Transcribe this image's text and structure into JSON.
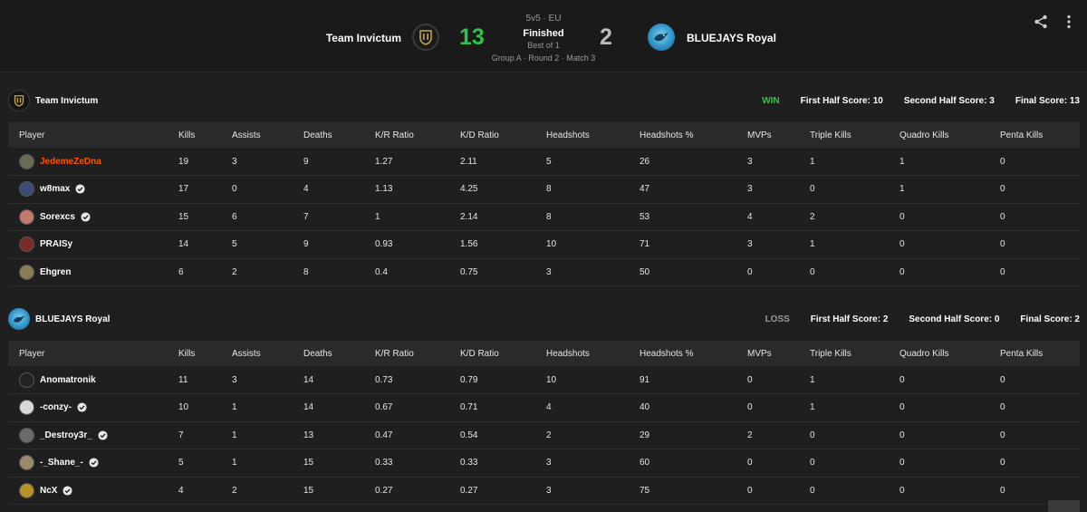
{
  "match": {
    "team_a_name": "Team Invictum",
    "team_b_name": "BLUEJAYS Royal",
    "score_a": "13",
    "score_b": "2",
    "mode": "5v5 · EU",
    "status": "Finished",
    "best_of": "Best of 1",
    "stage": "Group A · Round 2 · Match 3"
  },
  "columns": [
    "Player",
    "Kills",
    "Assists",
    "Deaths",
    "K/R Ratio",
    "K/D Ratio",
    "Headshots",
    "Headshots %",
    "MVPs",
    "Triple Kills",
    "Quadro Kills",
    "Penta Kills"
  ],
  "teams": [
    {
      "name": "Team Invictum",
      "result": "WIN",
      "first_half": "First Half Score: 10",
      "second_half": "Second Half Score: 3",
      "final": "Final Score: 13",
      "players": [
        {
          "name": "JedemeZeDna",
          "verified": false,
          "highlight": true,
          "avatar_color": "#6b6b55",
          "stats": [
            "19",
            "3",
            "9",
            "1.27",
            "2.11",
            "5",
            "26",
            "3",
            "1",
            "1",
            "0"
          ]
        },
        {
          "name": "w8max",
          "verified": true,
          "highlight": false,
          "avatar_color": "#3c4a78",
          "stats": [
            "17",
            "0",
            "4",
            "1.13",
            "4.25",
            "8",
            "47",
            "3",
            "0",
            "1",
            "0"
          ]
        },
        {
          "name": "Sorexcs",
          "verified": true,
          "highlight": false,
          "avatar_color": "#c27a6a",
          "stats": [
            "15",
            "6",
            "7",
            "1",
            "2.14",
            "8",
            "53",
            "4",
            "2",
            "0",
            "0"
          ]
        },
        {
          "name": "PRAISy",
          "verified": false,
          "highlight": false,
          "avatar_color": "#7a2a2a",
          "stats": [
            "14",
            "5",
            "9",
            "0.93",
            "1.56",
            "10",
            "71",
            "3",
            "1",
            "0",
            "0"
          ]
        },
        {
          "name": "Ehgren",
          "verified": false,
          "highlight": false,
          "avatar_color": "#8a7a55",
          "stats": [
            "6",
            "2",
            "8",
            "0.4",
            "0.75",
            "3",
            "50",
            "0",
            "0",
            "0",
            "0"
          ]
        }
      ]
    },
    {
      "name": "BLUEJAYS Royal",
      "result": "LOSS",
      "first_half": "First Half Score: 2",
      "second_half": "Second Half Score: 0",
      "final": "Final Score: 2",
      "players": [
        {
          "name": "Anomatronik",
          "verified": false,
          "highlight": false,
          "avatar_color": "#222222",
          "stats": [
            "11",
            "3",
            "14",
            "0.73",
            "0.79",
            "10",
            "91",
            "0",
            "1",
            "0",
            "0"
          ]
        },
        {
          "name": "-conzy-",
          "verified": true,
          "highlight": false,
          "avatar_color": "#d8d8d8",
          "stats": [
            "10",
            "1",
            "14",
            "0.67",
            "0.71",
            "4",
            "40",
            "0",
            "1",
            "0",
            "0"
          ]
        },
        {
          "name": "_Destroy3r_",
          "verified": true,
          "highlight": false,
          "avatar_color": "#6a6a6a",
          "stats": [
            "7",
            "1",
            "13",
            "0.47",
            "0.54",
            "2",
            "29",
            "2",
            "0",
            "0",
            "0"
          ]
        },
        {
          "name": "-_Shane_-",
          "verified": true,
          "highlight": false,
          "avatar_color": "#9a8a6a",
          "stats": [
            "5",
            "1",
            "15",
            "0.33",
            "0.33",
            "3",
            "60",
            "0",
            "0",
            "0",
            "0"
          ]
        },
        {
          "name": "NcX",
          "verified": true,
          "highlight": false,
          "avatar_color": "#b8902a",
          "stats": [
            "4",
            "2",
            "15",
            "0.27",
            "0.27",
            "3",
            "75",
            "0",
            "0",
            "0",
            "0"
          ]
        }
      ]
    }
  ],
  "icons": {
    "share": "share-icon",
    "more": "more-vertical-icon",
    "verified": "verified-check-icon",
    "team_a_logo": "team-invictum-logo",
    "team_b_logo": "bluejays-logo"
  },
  "colors": {
    "win": "#32c14b",
    "loss": "#9a9a9a",
    "highlight_player": "#ff5500",
    "background": "#1f1f1f",
    "table_header": "#2a2a2a"
  }
}
